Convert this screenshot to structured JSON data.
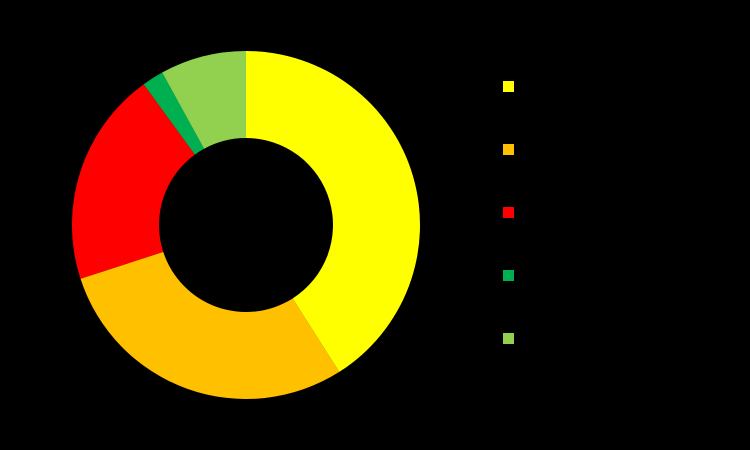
{
  "chart_data": {
    "type": "pie",
    "donut": true,
    "categories": [
      null,
      null,
      null,
      null,
      null
    ],
    "values": [
      41,
      29,
      20,
      2,
      8
    ],
    "colors": [
      "#ffff00",
      "#ffc000",
      "#ff0000",
      "#00b050",
      "#92d050"
    ]
  }
}
